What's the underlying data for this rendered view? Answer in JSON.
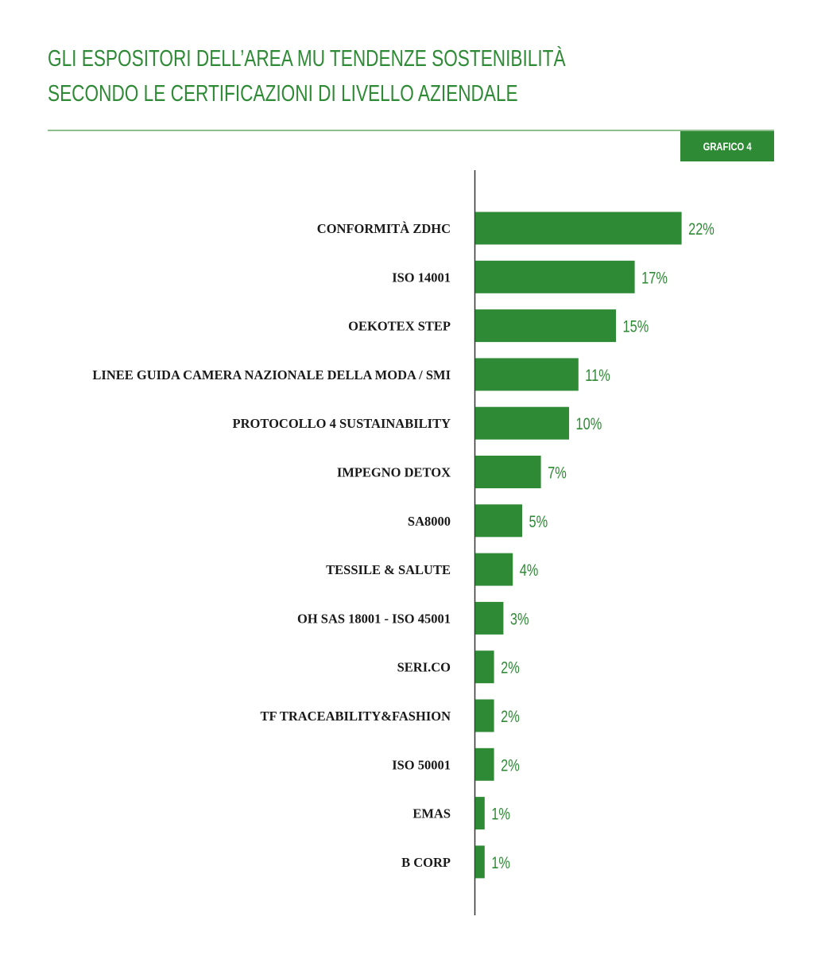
{
  "header": {
    "title_line1": "GLI ESPOSITORI DELL’AREA MU TENDENZE SOSTENIBILITÀ",
    "title_line2": "SECONDO LE CERTIFICAZIONI DI LIVELLO AZIENDALE",
    "badge": "GRAFICO 4"
  },
  "colors": {
    "accent": "#2f8a36",
    "rule": "#8fbf8f",
    "axis": "#333333"
  },
  "chart_data": {
    "type": "bar",
    "orientation": "horizontal",
    "categories": [
      "CONFORMITÀ ZDHC",
      "ISO 14001",
      "OEKOTEX  STEP",
      "LINEE GUIDA CAMERA NAZIONALE DELLA MODA / SMI",
      "PROTOCOLLO 4 SUSTAINABILITY",
      "IMPEGNO DETOX",
      "SA8000",
      "TESSILE & SALUTE",
      "OH SAS 18001 - ISO 45001",
      "SERI.CO",
      "TF TRACEABILITY&FASHION",
      "ISO 50001",
      "EMAS",
      "B CORP"
    ],
    "values": [
      22,
      17,
      15,
      11,
      10,
      7,
      5,
      4,
      3,
      2,
      2,
      2,
      1,
      1
    ],
    "value_labels": [
      "22%",
      "17%",
      "15%",
      "11%",
      "10%",
      "7%",
      "5%",
      "4%",
      "3%",
      "2%",
      "2%",
      "2%",
      "1%",
      "1%"
    ],
    "unit": "%",
    "grid": false
  }
}
